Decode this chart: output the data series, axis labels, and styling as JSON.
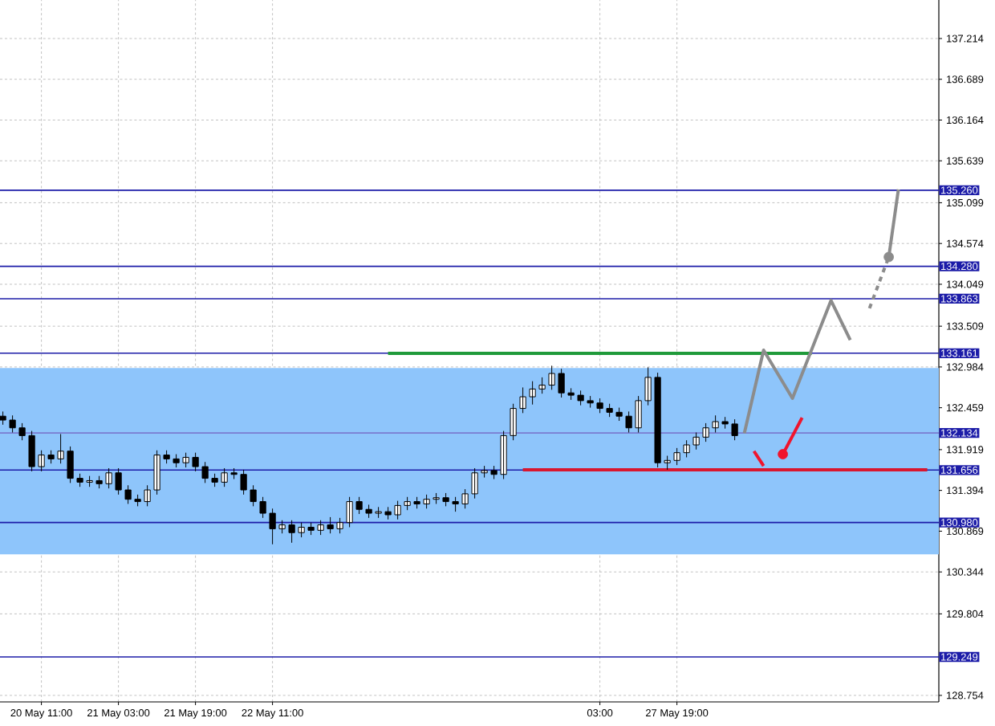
{
  "chart_data": {
    "type": "candlestick",
    "categories": [
      null,
      null,
      null,
      null,
      "20 May 11:00",
      null,
      null,
      null,
      null,
      null,
      null,
      null,
      "21 May 03:00",
      null,
      null,
      null,
      null,
      null,
      null,
      null,
      "21 May 19:00",
      null,
      null,
      null,
      null,
      null,
      null,
      null,
      "22 May 11:00",
      null,
      null,
      null,
      null,
      null,
      null,
      null,
      null,
      null,
      null,
      null,
      null,
      null,
      null,
      null,
      null,
      null,
      null,
      null,
      null,
      null,
      null,
      null,
      null,
      null,
      null,
      null,
      null,
      null,
      null,
      null,
      null,
      null,
      "03:00",
      null,
      null,
      null,
      null,
      null,
      null,
      null,
      "27 May 19:00",
      null,
      null,
      null,
      null,
      null,
      null,
      null,
      null,
      null,
      null,
      null,
      null,
      null,
      null,
      null,
      null,
      null,
      null,
      null,
      null,
      null,
      null,
      null,
      null,
      null,
      null,
      null
    ],
    "ohlc": [
      [
        132.35,
        132.41,
        132.24,
        132.3
      ],
      [
        132.3,
        132.36,
        132.14,
        132.2
      ],
      [
        132.2,
        132.26,
        132.04,
        132.1
      ],
      [
        132.1,
        132.16,
        131.64,
        131.7
      ],
      [
        131.7,
        131.91,
        131.64,
        131.85
      ],
      [
        131.85,
        131.91,
        131.74,
        131.8
      ],
      [
        131.8,
        132.12,
        131.74,
        131.9
      ],
      [
        131.9,
        131.96,
        131.49,
        131.55
      ],
      [
        131.55,
        131.61,
        131.44,
        131.5
      ],
      [
        131.5,
        131.58,
        131.44,
        131.52
      ],
      [
        131.52,
        131.58,
        131.42,
        131.48
      ],
      [
        131.48,
        131.68,
        131.42,
        131.62
      ],
      [
        131.62,
        131.68,
        131.34,
        131.4
      ],
      [
        131.4,
        131.46,
        131.22,
        131.28
      ],
      [
        131.28,
        131.34,
        131.19,
        131.25
      ],
      [
        131.25,
        131.46,
        131.19,
        131.4
      ],
      [
        131.4,
        131.91,
        131.34,
        131.85
      ],
      [
        131.85,
        131.91,
        131.74,
        131.8
      ],
      [
        131.8,
        131.86,
        131.69,
        131.75
      ],
      [
        131.75,
        131.88,
        131.69,
        131.82
      ],
      [
        131.82,
        131.88,
        131.64,
        131.7
      ],
      [
        131.7,
        131.76,
        131.49,
        131.55
      ],
      [
        131.55,
        131.61,
        131.44,
        131.5
      ],
      [
        131.5,
        131.68,
        131.44,
        131.62
      ],
      [
        131.62,
        131.68,
        131.54,
        131.6
      ],
      [
        131.6,
        131.66,
        131.34,
        131.4
      ],
      [
        131.4,
        131.46,
        131.19,
        131.25
      ],
      [
        131.25,
        131.31,
        131.04,
        131.1
      ],
      [
        131.1,
        131.16,
        130.7,
        130.9
      ],
      [
        130.9,
        131.01,
        130.84,
        130.95
      ],
      [
        130.95,
        131.01,
        130.72,
        130.85
      ],
      [
        130.85,
        130.98,
        130.79,
        130.92
      ],
      [
        130.92,
        130.98,
        130.82,
        130.88
      ],
      [
        130.88,
        131.01,
        130.82,
        130.95
      ],
      [
        130.95,
        131.05,
        130.84,
        130.9
      ],
      [
        130.9,
        131.04,
        130.84,
        130.98
      ],
      [
        130.98,
        131.31,
        130.92,
        131.25
      ],
      [
        131.25,
        131.31,
        131.09,
        131.15
      ],
      [
        131.15,
        131.21,
        131.04,
        131.1
      ],
      [
        131.1,
        131.18,
        131.04,
        131.12
      ],
      [
        131.12,
        131.18,
        131.02,
        131.08
      ],
      [
        131.08,
        131.26,
        131.02,
        131.2
      ],
      [
        131.2,
        131.31,
        131.14,
        131.25
      ],
      [
        131.25,
        131.31,
        131.16,
        131.22
      ],
      [
        131.22,
        131.34,
        131.16,
        131.28
      ],
      [
        131.28,
        131.36,
        131.22,
        131.3
      ],
      [
        131.3,
        131.36,
        131.19,
        131.25
      ],
      [
        131.25,
        131.31,
        131.12,
        131.22
      ],
      [
        131.22,
        131.41,
        131.16,
        131.35
      ],
      [
        131.35,
        131.68,
        131.29,
        131.62
      ],
      [
        131.62,
        131.71,
        131.56,
        131.65
      ],
      [
        131.65,
        131.71,
        131.54,
        131.6
      ],
      [
        131.6,
        132.16,
        131.54,
        132.1
      ],
      [
        132.1,
        132.51,
        132.04,
        132.45
      ],
      [
        132.45,
        132.72,
        132.39,
        132.6
      ],
      [
        132.6,
        132.8,
        132.5,
        132.7
      ],
      [
        132.7,
        132.85,
        132.64,
        132.75
      ],
      [
        132.75,
        133.0,
        132.69,
        132.9
      ],
      [
        132.9,
        132.96,
        132.59,
        132.65
      ],
      [
        132.65,
        132.71,
        132.56,
        132.62
      ],
      [
        132.62,
        132.68,
        132.49,
        132.55
      ],
      [
        132.55,
        132.61,
        132.46,
        132.52
      ],
      [
        132.52,
        132.58,
        132.39,
        132.45
      ],
      [
        132.45,
        132.51,
        132.34,
        132.4
      ],
      [
        132.4,
        132.46,
        132.29,
        132.35
      ],
      [
        132.35,
        132.41,
        132.14,
        132.2
      ],
      [
        132.2,
        132.61,
        132.14,
        132.55
      ],
      [
        132.55,
        132.98,
        132.49,
        132.85
      ],
      [
        132.85,
        132.91,
        131.69,
        131.75
      ],
      [
        131.75,
        131.84,
        131.66,
        131.78
      ],
      [
        131.78,
        131.94,
        131.72,
        131.88
      ],
      [
        131.88,
        132.04,
        131.82,
        131.98
      ],
      [
        131.98,
        132.14,
        131.92,
        132.08
      ],
      [
        132.08,
        132.26,
        132.02,
        132.2
      ],
      [
        132.2,
        132.36,
        132.14,
        132.28
      ],
      [
        132.28,
        132.34,
        132.19,
        132.25
      ],
      [
        132.25,
        132.31,
        132.04,
        132.1
      ],
      null,
      null,
      null,
      null,
      null,
      null,
      null,
      null,
      null,
      null,
      null,
      null,
      null,
      null,
      null,
      null,
      null,
      null,
      null,
      null,
      null
    ],
    "color": "#000000",
    "series": [
      {
        "type": "line",
        "color": "#1f9a3a",
        "values": [
          null,
          null,
          null,
          null,
          null,
          null,
          null,
          null,
          null,
          null,
          null,
          null,
          null,
          null,
          null,
          null,
          null,
          null,
          null,
          null,
          null,
          null,
          null,
          null,
          null,
          null,
          null,
          null,
          null,
          null,
          null,
          null,
          null,
          null,
          null,
          null,
          null,
          null,
          null,
          null,
          133.16,
          133.16,
          133.16,
          133.16,
          133.16,
          133.16,
          133.16,
          133.16,
          133.16,
          133.16,
          133.16,
          133.16,
          133.16,
          133.16,
          133.16,
          133.16,
          133.16,
          133.16,
          133.16,
          133.16,
          133.16,
          133.16,
          133.16,
          133.16,
          133.16,
          133.16,
          133.16,
          133.16,
          133.16,
          133.16,
          133.16,
          133.16,
          133.16,
          133.16,
          133.16,
          133.16,
          133.16,
          133.16,
          133.16,
          133.16,
          133.16,
          133.16,
          133.16,
          133.16,
          133.16,
          null,
          null,
          null,
          null,
          null,
          null,
          null,
          null,
          null,
          null,
          null,
          null,
          null
        ]
      },
      {
        "type": "line",
        "color": "#d9162e",
        "values": [
          null,
          null,
          null,
          null,
          null,
          null,
          null,
          null,
          null,
          null,
          null,
          null,
          null,
          null,
          null,
          null,
          null,
          null,
          null,
          null,
          null,
          null,
          null,
          null,
          null,
          null,
          null,
          null,
          null,
          null,
          null,
          null,
          null,
          null,
          null,
          null,
          null,
          null,
          null,
          null,
          null,
          null,
          null,
          null,
          null,
          null,
          null,
          null,
          null,
          null,
          null,
          null,
          null,
          null,
          131.66,
          131.66,
          131.66,
          131.66,
          131.66,
          131.66,
          131.66,
          131.66,
          131.66,
          131.66,
          131.66,
          131.66,
          131.66,
          131.66,
          131.66,
          131.66,
          131.66,
          131.66,
          131.66,
          131.66,
          131.66,
          131.66,
          131.66,
          131.66,
          131.66,
          131.66,
          131.66,
          131.66,
          131.66,
          131.66,
          131.66,
          131.66,
          131.66,
          131.66,
          131.66,
          131.66,
          131.66,
          131.66,
          131.66,
          131.66,
          131.66,
          131.66,
          131.66,
          null
        ]
      },
      {
        "type": "line",
        "color": "#8c8c8c",
        "values": [
          null,
          null,
          null,
          null,
          null,
          null,
          null,
          null,
          null,
          null,
          null,
          null,
          null,
          null,
          null,
          null,
          null,
          null,
          null,
          null,
          null,
          null,
          null,
          null,
          null,
          null,
          null,
          null,
          null,
          null,
          null,
          null,
          null,
          null,
          null,
          null,
          null,
          null,
          null,
          null,
          null,
          null,
          null,
          null,
          null,
          null,
          null,
          null,
          null,
          null,
          null,
          null,
          null,
          null,
          null,
          null,
          null,
          null,
          null,
          null,
          null,
          null,
          null,
          null,
          null,
          null,
          null,
          null,
          null,
          null,
          null,
          null,
          null,
          null,
          null,
          null,
          null,
          132.13,
          null,
          133.2,
          null,
          null,
          132.58,
          null,
          null,
          null,
          133.84,
          null,
          133.33,
          null,
          null,
          null,
          null,
          null,
          null,
          null,
          null,
          null
        ]
      },
      {
        "type": "line",
        "color": "#8c8c8c",
        "line_style": "dashed",
        "values": [
          null,
          null,
          null,
          null,
          null,
          null,
          null,
          null,
          null,
          null,
          null,
          null,
          null,
          null,
          null,
          null,
          null,
          null,
          null,
          null,
          null,
          null,
          null,
          null,
          null,
          null,
          null,
          null,
          null,
          null,
          null,
          null,
          null,
          null,
          null,
          null,
          null,
          null,
          null,
          null,
          null,
          null,
          null,
          null,
          null,
          null,
          null,
          null,
          null,
          null,
          null,
          null,
          null,
          null,
          null,
          null,
          null,
          null,
          null,
          null,
          null,
          null,
          null,
          null,
          null,
          null,
          null,
          null,
          null,
          null,
          null,
          null,
          null,
          null,
          null,
          null,
          null,
          null,
          null,
          null,
          null,
          null,
          null,
          null,
          null,
          null,
          null,
          null,
          null,
          null,
          133.74,
          null,
          134.4,
          null,
          null,
          null,
          null,
          null
        ]
      },
      {
        "type": "line",
        "color": "#8c8c8c",
        "values": [
          null,
          null,
          null,
          null,
          null,
          null,
          null,
          null,
          null,
          null,
          null,
          null,
          null,
          null,
          null,
          null,
          null,
          null,
          null,
          null,
          null,
          null,
          null,
          null,
          null,
          null,
          null,
          null,
          null,
          null,
          null,
          null,
          null,
          null,
          null,
          null,
          null,
          null,
          null,
          null,
          null,
          null,
          null,
          null,
          null,
          null,
          null,
          null,
          null,
          null,
          null,
          null,
          null,
          null,
          null,
          null,
          null,
          null,
          null,
          null,
          null,
          null,
          null,
          null,
          null,
          null,
          null,
          null,
          null,
          null,
          null,
          null,
          null,
          null,
          null,
          null,
          null,
          null,
          null,
          null,
          null,
          null,
          null,
          null,
          null,
          null,
          null,
          null,
          null,
          null,
          null,
          null,
          134.4,
          135.27,
          null,
          null,
          null,
          null
        ]
      },
      {
        "type": "scatter",
        "color": "#8c8c8c",
        "marker": "circle",
        "values": [
          null,
          null,
          null,
          null,
          null,
          null,
          null,
          null,
          null,
          null,
          null,
          null,
          null,
          null,
          null,
          null,
          null,
          null,
          null,
          null,
          null,
          null,
          null,
          null,
          null,
          null,
          null,
          null,
          null,
          null,
          null,
          null,
          null,
          null,
          null,
          null,
          null,
          null,
          null,
          null,
          null,
          null,
          null,
          null,
          null,
          null,
          null,
          null,
          null,
          null,
          null,
          null,
          null,
          null,
          null,
          null,
          null,
          null,
          null,
          null,
          null,
          null,
          null,
          null,
          null,
          null,
          null,
          null,
          null,
          null,
          null,
          null,
          null,
          null,
          null,
          null,
          null,
          null,
          null,
          null,
          null,
          null,
          null,
          null,
          null,
          null,
          null,
          null,
          null,
          null,
          null,
          null,
          134.4,
          null,
          null,
          null,
          null,
          null
        ]
      },
      {
        "type": "line",
        "color": "#f0142d",
        "values": [
          null,
          null,
          null,
          null,
          null,
          null,
          null,
          null,
          null,
          null,
          null,
          null,
          null,
          null,
          null,
          null,
          null,
          null,
          null,
          null,
          null,
          null,
          null,
          null,
          null,
          null,
          null,
          null,
          null,
          null,
          null,
          null,
          null,
          null,
          null,
          null,
          null,
          null,
          null,
          null,
          null,
          null,
          null,
          null,
          null,
          null,
          null,
          null,
          null,
          null,
          null,
          null,
          null,
          null,
          null,
          null,
          null,
          null,
          null,
          null,
          null,
          null,
          null,
          null,
          null,
          null,
          null,
          null,
          null,
          null,
          null,
          null,
          null,
          null,
          null,
          null,
          null,
          null,
          131.9,
          131.71,
          null,
          null,
          null,
          null,
          null,
          null,
          null,
          null,
          null,
          null,
          null,
          null,
          null,
          null,
          null,
          null,
          null,
          null
        ]
      },
      {
        "type": "line",
        "color": "#f0142d",
        "values": [
          null,
          null,
          null,
          null,
          null,
          null,
          null,
          null,
          null,
          null,
          null,
          null,
          null,
          null,
          null,
          null,
          null,
          null,
          null,
          null,
          null,
          null,
          null,
          null,
          null,
          null,
          null,
          null,
          null,
          null,
          null,
          null,
          null,
          null,
          null,
          null,
          null,
          null,
          null,
          null,
          null,
          null,
          null,
          null,
          null,
          null,
          null,
          null,
          null,
          null,
          null,
          null,
          null,
          null,
          null,
          null,
          null,
          null,
          null,
          null,
          null,
          null,
          null,
          null,
          null,
          null,
          null,
          null,
          null,
          null,
          null,
          null,
          null,
          null,
          null,
          null,
          null,
          null,
          null,
          null,
          null,
          131.86,
          null,
          132.33,
          null,
          null,
          null,
          null,
          null,
          null,
          null,
          null,
          null,
          null,
          null,
          null,
          null,
          null
        ]
      },
      {
        "type": "scatter",
        "color": "#f0142d",
        "marker": "circle",
        "values": [
          null,
          null,
          null,
          null,
          null,
          null,
          null,
          null,
          null,
          null,
          null,
          null,
          null,
          null,
          null,
          null,
          null,
          null,
          null,
          null,
          null,
          null,
          null,
          null,
          null,
          null,
          null,
          null,
          null,
          null,
          null,
          null,
          null,
          null,
          null,
          null,
          null,
          null,
          null,
          null,
          null,
          null,
          null,
          null,
          null,
          null,
          null,
          null,
          null,
          null,
          null,
          null,
          null,
          null,
          null,
          null,
          null,
          null,
          null,
          null,
          null,
          null,
          null,
          null,
          null,
          null,
          null,
          null,
          null,
          null,
          null,
          null,
          null,
          null,
          null,
          null,
          null,
          null,
          null,
          null,
          null,
          131.86,
          null,
          null,
          null,
          null,
          null,
          null,
          null,
          null,
          null,
          null,
          null,
          null,
          null,
          null,
          null,
          null
        ]
      }
    ],
    "ylim": [
      128.67,
      137.71
    ],
    "yticks": [
      137.214,
      136.689,
      136.164,
      135.639,
      135.099,
      134.574,
      134.049,
      133.509,
      132.984,
      132.459,
      131.919,
      131.394,
      130.869,
      130.344,
      129.804,
      128.754
    ],
    "ref_lines": [
      {
        "axis": "y",
        "value": 135.26,
        "label": "135.260",
        "color": "#1c1ca8"
      },
      {
        "axis": "y",
        "value": 134.28,
        "label": "134.280",
        "color": "#1c1ca8"
      },
      {
        "axis": "y",
        "value": 133.863,
        "label": "133.863",
        "color": "#1c1ca8"
      },
      {
        "axis": "y",
        "value": 133.161,
        "label": "133.161",
        "color": "#1c1ca8"
      },
      {
        "axis": "y",
        "value": 132.134,
        "label": "132.134",
        "color": "#7a7ad0"
      },
      {
        "axis": "y",
        "value": 131.656,
        "label": "131.656",
        "color": "#1c1ca8"
      },
      {
        "axis": "y",
        "value": 130.98,
        "label": "130.980",
        "color": "#1c1ca8"
      },
      {
        "axis": "y",
        "value": 129.249,
        "label": "129.249",
        "color": "#1c1ca8"
      }
    ],
    "bands": [
      {
        "axis": "y",
        "from": 130.57,
        "to": 132.97,
        "color": "#8ec5fb"
      }
    ],
    "grid": true
  }
}
